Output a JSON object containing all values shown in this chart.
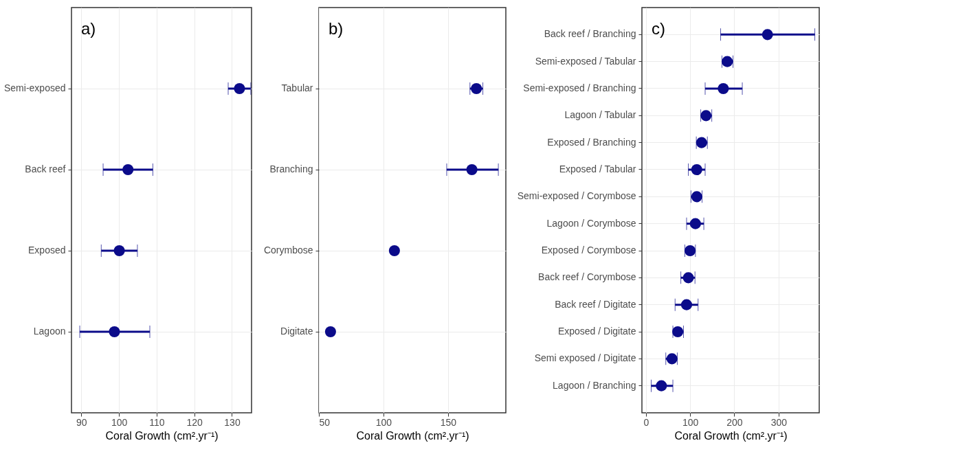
{
  "chart_data": [
    {
      "type": "scatter",
      "title": "a)",
      "orientation": "horizontal",
      "xlabel": "Coral Growth (cm².yr⁻¹)",
      "categories": [
        "Semi-exposed",
        "Back reef",
        "Exposed",
        "Lagoon"
      ],
      "values": [
        132,
        102.4,
        100.1,
        98.8
      ],
      "errors": [
        [
          129,
          135
        ],
        [
          95.8,
          109
        ],
        [
          95.3,
          104.9
        ],
        [
          89.6,
          108.2
        ]
      ],
      "color": "#0b0b8a",
      "marker": "circle",
      "xlim": [
        87.4,
        135.2
      ],
      "xticks": [
        90,
        100,
        110,
        120,
        130
      ],
      "grid": true
    },
    {
      "type": "scatter",
      "title": "b)",
      "orientation": "horizontal",
      "xlabel": "Coral Growth (cm².yr⁻¹)",
      "categories": [
        "Tabular",
        "Branching",
        "Corymbose",
        "Digitate"
      ],
      "values": [
        172,
        168.5,
        108.5,
        59
      ],
      "errors": [
        [
          167,
          177
        ],
        [
          149,
          189
        ],
        null,
        null
      ],
      "color": "#0b0b8a",
      "marker": "circle",
      "xlim": [
        50,
        194.8
      ],
      "xticks": [
        50,
        100,
        150
      ],
      "grid": true
    },
    {
      "type": "scatter",
      "title": "c)",
      "orientation": "horizontal",
      "xlabel": "Coral Growth (cm².yr⁻¹)",
      "categories": [
        "Back reef / Branching",
        "Semi-exposed / Tabular",
        "Semi-exposed / Branching",
        "Lagoon / Tabular",
        "Exposed / Branching",
        "Exposed / Tabular",
        "Semi-exposed / Corymbose",
        "Lagoon / Corymbose",
        "Exposed / Corymbose",
        "Back reef / Corymbose",
        "Back reef / Digitate",
        "Exposed / Digitate",
        "Semi exposed / Digitate",
        "Lagoon / Branching"
      ],
      "values": [
        275,
        184,
        175,
        136,
        126,
        115,
        115,
        112,
        100,
        96,
        92,
        72,
        59,
        35
      ],
      "errors": [
        [
          169,
          382
        ],
        [
          172,
          197
        ],
        [
          134,
          218
        ],
        [
          124,
          149
        ],
        [
          114,
          139
        ],
        [
          96,
          134
        ],
        [
          102,
          127
        ],
        [
          92,
          131
        ],
        [
          88,
          112
        ],
        [
          79,
          111
        ],
        [
          66,
          118
        ],
        [
          61,
          85
        ],
        [
          45,
          71
        ],
        [
          12,
          61
        ]
      ],
      "color": "#0b0b8a",
      "marker": "circle",
      "xlim": [
        -9,
        392
      ],
      "xticks": [
        0,
        100,
        200,
        300
      ],
      "grid": true
    }
  ]
}
